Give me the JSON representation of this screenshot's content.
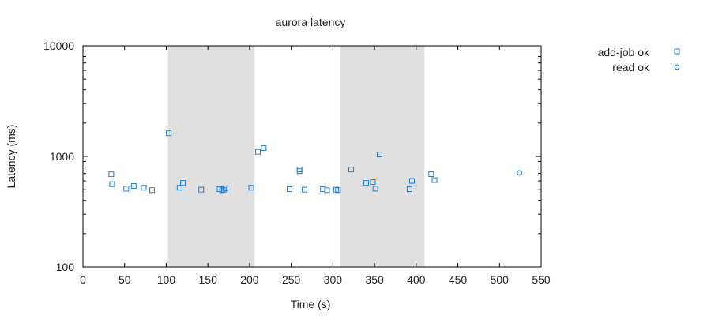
{
  "chart_data": {
    "type": "scatter",
    "title": "aurora latency",
    "xlabel": "Time (s)",
    "ylabel": "Latency (ms)",
    "xlim": [
      0,
      550
    ],
    "ylim": [
      100,
      10000
    ],
    "yscale": "log",
    "x_ticks": [
      "0",
      "50",
      "100",
      "150",
      "200",
      "250",
      "300",
      "350",
      "400",
      "450",
      "500",
      "550"
    ],
    "y_ticks": [
      "100",
      "1000",
      "10000"
    ],
    "legend_position": "top-right, outside plot",
    "grid": false,
    "shaded_regions": [
      {
        "x0": 102,
        "x1": 206
      },
      {
        "x0": 309,
        "x1": 410
      }
    ],
    "series": [
      {
        "name": "add-job ok",
        "marker": "square",
        "color": "#1f7fd4",
        "points": [
          [
            34,
            690
          ],
          [
            35,
            560
          ],
          [
            52,
            510
          ],
          [
            61,
            540
          ],
          [
            73,
            520
          ],
          [
            83,
            495
          ],
          [
            103,
            1620
          ],
          [
            116,
            520
          ],
          [
            120,
            575
          ],
          [
            142,
            500
          ],
          [
            164,
            505
          ],
          [
            167,
            495
          ],
          [
            169,
            500
          ],
          [
            171,
            515
          ],
          [
            202,
            520
          ],
          [
            210,
            1100
          ],
          [
            217,
            1190
          ],
          [
            248,
            505
          ],
          [
            260,
            760
          ],
          [
            260,
            735
          ],
          [
            266,
            500
          ],
          [
            288,
            505
          ],
          [
            293,
            495
          ],
          [
            304,
            500
          ],
          [
            306,
            495
          ],
          [
            322,
            760
          ],
          [
            340,
            575
          ],
          [
            348,
            585
          ],
          [
            351,
            510
          ],
          [
            356,
            1040
          ],
          [
            392,
            505
          ],
          [
            395,
            600
          ],
          [
            418,
            690
          ],
          [
            422,
            610
          ]
        ]
      },
      {
        "name": "read ok",
        "marker": "circle",
        "color": "#1f7fd4",
        "points": [
          [
            524,
            710
          ]
        ]
      }
    ]
  }
}
